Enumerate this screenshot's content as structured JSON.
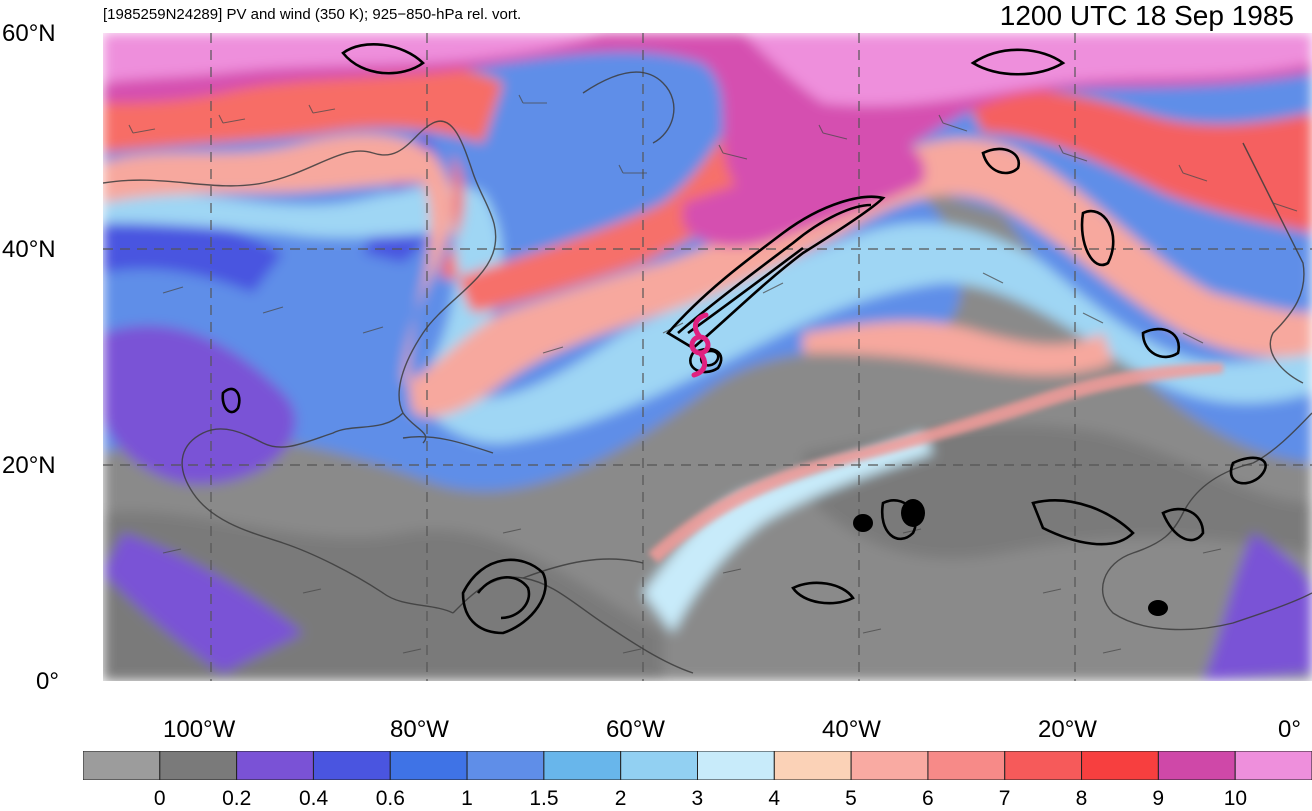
{
  "header": {
    "left_title": "[1985259N24289] PV and wind (350 K); 925−850-hPa rel. vort.",
    "right_title": "1200 UTC 18 Sep 1985"
  },
  "axes": {
    "lat_labels": [
      "60°N",
      "40°N",
      "20°N",
      "0°"
    ],
    "lon_labels": [
      "100°W",
      "80°W",
      "60°W",
      "40°W",
      "20°W",
      "0°"
    ]
  },
  "map": {
    "projection": "cylindrical",
    "lat_range": [
      0,
      60
    ],
    "lon_range": [
      -110,
      0
    ],
    "gridlines": "dashed",
    "storm_symbol_color": "#e0207f",
    "storm_center": {
      "lat": 31,
      "lon": -55
    }
  },
  "colorbar": {
    "tick_labels": [
      "0",
      "0.2",
      "0.4",
      "0.6",
      "1",
      "1.5",
      "2",
      "3",
      "4",
      "5",
      "6",
      "7",
      "8",
      "9",
      "10"
    ],
    "colors": [
      "#9c9c9c",
      "#7a7a7a",
      "#7a52d6",
      "#4a55e0",
      "#3f73e6",
      "#5f8ee8",
      "#68b6eb",
      "#92d0f2",
      "#c8ebfa",
      "#fbd2b7",
      "#f9aaa2",
      "#f78a88",
      "#f65a5a",
      "#f73f3f",
      "#cf48a8",
      "#ee8fdc"
    ]
  }
}
